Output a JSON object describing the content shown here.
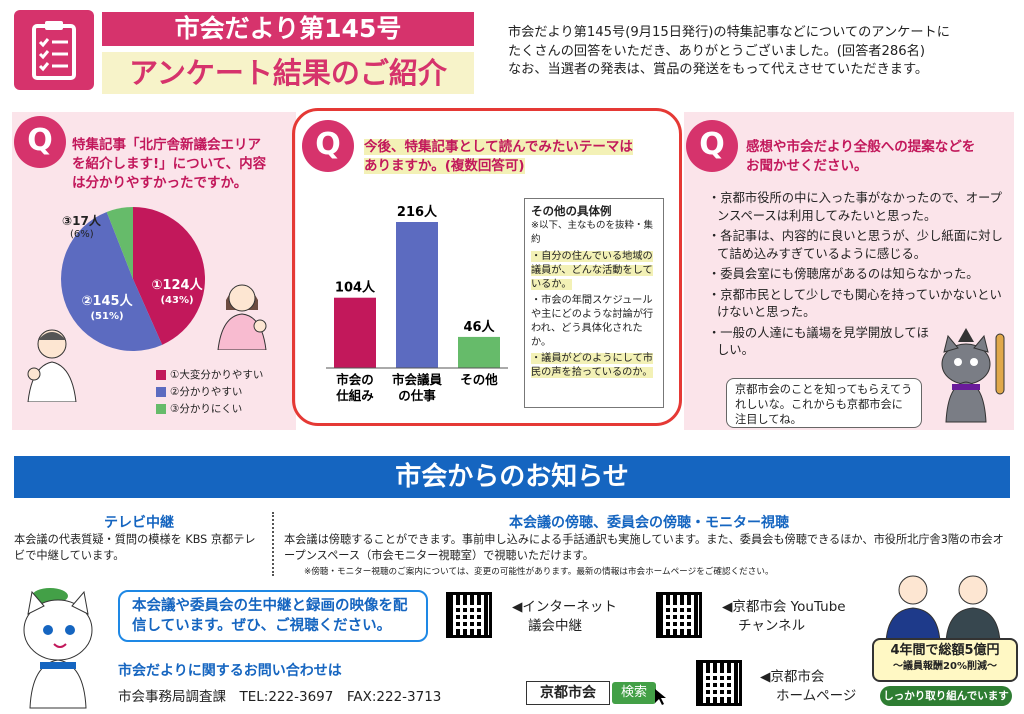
{
  "header": {
    "title_top": "市会だより第145号",
    "title_main": "アンケート結果のご紹介",
    "intro_lines": [
      "市会だより第145号(9月15日発行)の特集記事などについてのアンケートに",
      "たくさんの回答をいただき、ありがとうございました。(回答者286名)",
      "なお、当選者の発表は、賞品の発送をもって代えさせていただきます。"
    ]
  },
  "q1": {
    "badge": "Q",
    "question_lines": [
      "特集記事「北庁舎新議会エリア",
      "を紹介します!」について、内容",
      "は分かりやすかったですか。"
    ],
    "slices": [
      {
        "label": "①124人",
        "pct": "(43%)",
        "value": 124,
        "color": "#c2185b"
      },
      {
        "label": "②145人",
        "pct": "(51%)",
        "value": 145,
        "color": "#5c6bc0"
      },
      {
        "label": "③17人",
        "pct": "(6%)",
        "value": 17,
        "color": "#66bb6a"
      }
    ],
    "legend": [
      "①大変分かりやすい",
      "②分かりやすい",
      "③分かりにくい"
    ]
  },
  "chart_data": {
    "type": "bar",
    "categories": [
      "市会の仕組み",
      "市会議員の仕事",
      "その他"
    ],
    "values": [
      104,
      216,
      46
    ],
    "value_labels": [
      "104人",
      "216人",
      "46人"
    ],
    "colors": [
      "#c2185b",
      "#5c6bc0",
      "#66bb6a"
    ]
  },
  "q2": {
    "badge": "Q",
    "question_lines": [
      "今後、特集記事として読んでみたいテーマは",
      "ありますか。(複数回答可)"
    ],
    "cat_lines": [
      [
        "市会の",
        "仕組み"
      ],
      [
        "市会議員",
        "の仕事"
      ],
      [
        "その他",
        ""
      ]
    ],
    "other": {
      "title": "その他の具体例",
      "note": "※以下、主なものを抜粋・集約",
      "items": [
        "・自分の住んでいる地域の議員が、どんな活動をしているか。",
        "・市会の年間スケジュールや主にどのような討論が行われ、どう具体化されたか。",
        "・議員がどのようにして市民の声を拾っているのか。"
      ]
    }
  },
  "q3": {
    "badge": "Q",
    "question_lines": [
      "感想や市会だより全般への提案などを",
      "お聞かせください。"
    ],
    "comments": [
      "・京都市役所の中に入った事がなかったので、オープンスペースは利用してみたいと思った。",
      "・各記事は、内容的に良いと思うが、少し紙面に対して詰め込みすぎているように感じる。",
      "・委員会室にも傍聴席があるのは知らなかった。",
      "・京都市民として少しでも関心を持っていかないといけないと思った。",
      "・一般の人達にも議場を見学開放してほしい。"
    ],
    "bubble": "京都市会のことを知ってもらえてうれしいな。これからも京都市会に注目してね。"
  },
  "news": {
    "title": "市会からのお知らせ",
    "tv_heading": "テレビ中継",
    "tv_text": "本会議の代表質疑・質問の模様を KBS 京都テレビで中継しています。",
    "obs_heading": "本会議の傍聴、委員会の傍聴・モニター視聴",
    "obs_text": "本会議は傍聴することができます。事前申し込みによる手話通訳も実施しています。また、委員会も傍聴できるほか、市役所北庁舎3階の市会オープンスペース（市会モニター視聴室）で視聴いただけます。",
    "obs_note": "※傍聴・モニター視聴のご案内については、変更の可能性があります。最新の情報は市会ホームページをご確認ください。",
    "live_box": "本会議や委員会の生中継と録画の映像を配信しています。ぜひ、ご視聴ください。",
    "links": [
      {
        "text1": "◀インターネット",
        "text2": "議会中継"
      },
      {
        "text1": "◀京都市会 YouTube",
        "text2": "チャンネル"
      },
      {
        "text1": "◀京都市会",
        "text2": "ホームページ"
      }
    ],
    "contact_heading": "市会だよりに関するお問い合わせは",
    "contact_text": "市会事務局調査課　TEL:222-3697　FAX:222-3713",
    "search_text": "京都市会",
    "search_button": "検索",
    "badge_line1": "4年間で総額5億円",
    "badge_line2": "～議員報酬20%削減～",
    "badge_line3": "しっかり取り組んでいます"
  }
}
